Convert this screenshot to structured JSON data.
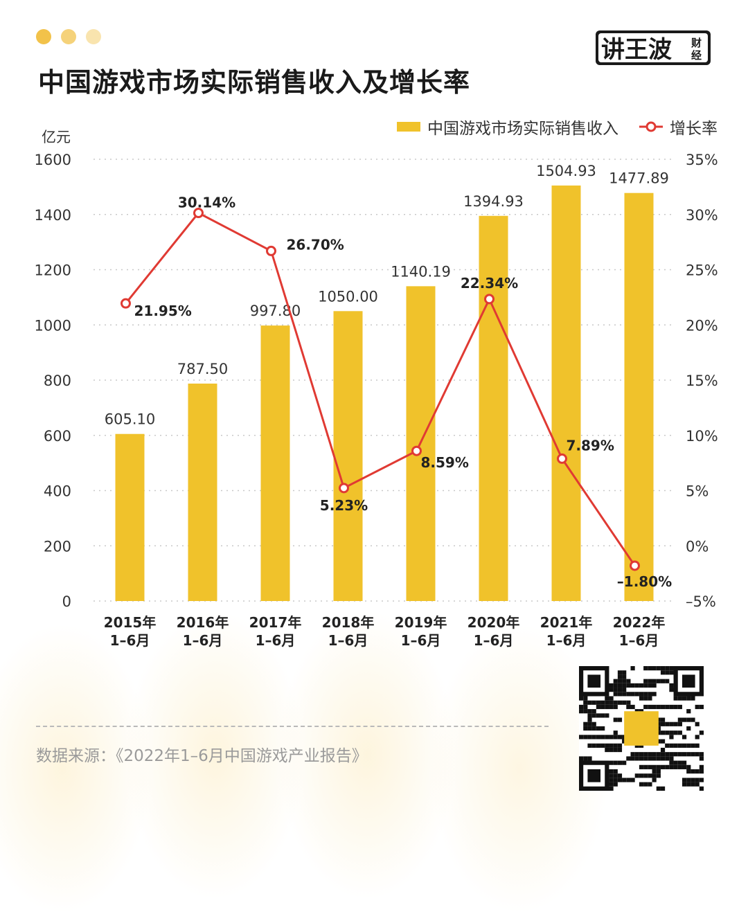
{
  "header": {
    "title": "中国游戏市场实际销售收入及增长率",
    "logo_main": "讲王波",
    "logo_sub_top": "财",
    "logo_sub_bottom": "经"
  },
  "colors": {
    "bar": "#F0C22B",
    "line": "#E03A33",
    "dot1": "#F2C24A",
    "dot2": "#F5D27A",
    "dot3": "#F9E4AE"
  },
  "legend": {
    "bar_label": "中国游戏市场实际销售收入",
    "line_label": "增长率"
  },
  "left_unit": "亿元",
  "chart_data": {
    "type": "bar",
    "categories": [
      [
        "2015年",
        "1–6月"
      ],
      [
        "2016年",
        "1–6月"
      ],
      [
        "2017年",
        "1–6月"
      ],
      [
        "2018年",
        "1–6月"
      ],
      [
        "2019年",
        "1–6月"
      ],
      [
        "2020年",
        "1–6月"
      ],
      [
        "2021年",
        "1–6月"
      ],
      [
        "2022年",
        "1–6月"
      ]
    ],
    "series": [
      {
        "name": "中国游戏市场实际销售收入",
        "type": "bar",
        "axis": "left",
        "values": [
          605.1,
          787.5,
          997.8,
          1050.0,
          1140.19,
          1394.93,
          1504.93,
          1477.89
        ],
        "labels": [
          "605.10",
          "787.50",
          "997.80",
          "1050.00",
          "1140.19",
          "1394.93",
          "1504.93",
          "1477.89"
        ]
      },
      {
        "name": "增长率",
        "type": "line",
        "axis": "right",
        "values": [
          21.95,
          30.14,
          26.7,
          5.23,
          8.59,
          22.34,
          7.89,
          -1.8
        ],
        "labels": [
          "21.95%",
          "30.14%",
          "26.70%",
          "5.23%",
          "8.59%",
          "22.34%",
          "7.89%",
          "–1.80%"
        ]
      }
    ],
    "ylim_left": [
      0,
      1600
    ],
    "ylim_right": [
      -5,
      35
    ],
    "yticks_left": [
      "0",
      "200",
      "400",
      "600",
      "800",
      "1000",
      "1200",
      "1400",
      "1600"
    ],
    "yticks_right": [
      "–5%",
      "0%",
      "5%",
      "10%",
      "15%",
      "20%",
      "25%",
      "30%",
      "35%"
    ],
    "grid": true,
    "legend_position": "top-right"
  },
  "footer": {
    "source": "数据来源：《2022年1–6月中国游戏产业报告》"
  }
}
